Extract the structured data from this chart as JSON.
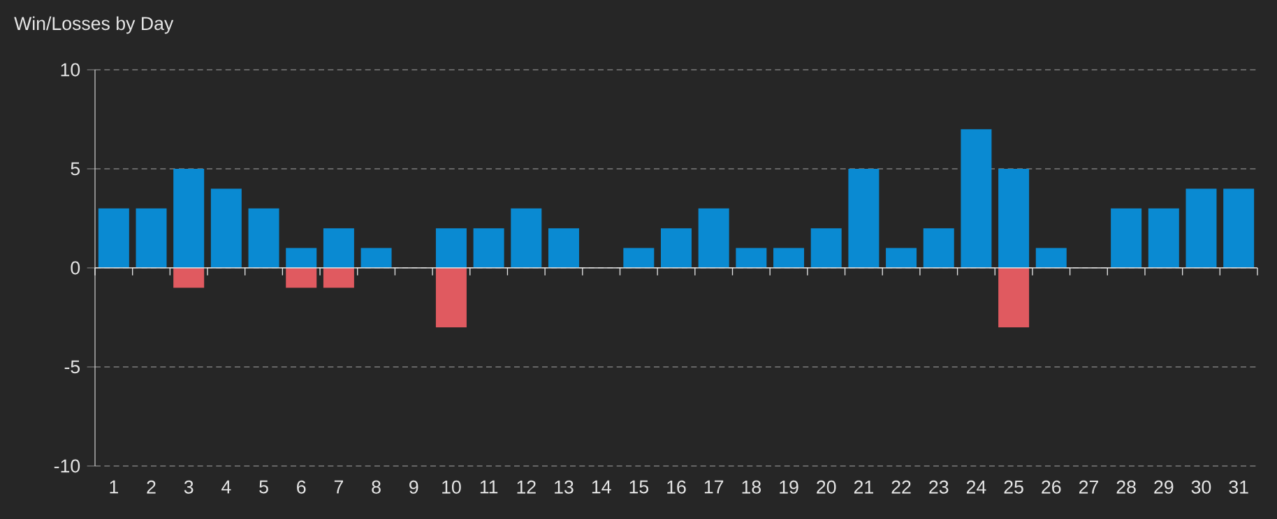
{
  "chart_data": {
    "type": "bar",
    "title": "Win/Losses by Day",
    "categories": [
      "1",
      "2",
      "3",
      "4",
      "5",
      "6",
      "7",
      "8",
      "9",
      "10",
      "11",
      "12",
      "13",
      "14",
      "15",
      "16",
      "17",
      "18",
      "19",
      "20",
      "21",
      "22",
      "23",
      "24",
      "25",
      "26",
      "27",
      "28",
      "29",
      "30",
      "31"
    ],
    "series": [
      {
        "color": "#0a8ad2",
        "values": [
          3,
          3,
          5,
          4,
          3,
          1,
          2,
          1,
          null,
          2,
          2,
          3,
          2,
          null,
          1,
          2,
          3,
          1,
          1,
          2,
          5,
          1,
          2,
          7,
          5,
          1,
          null,
          3,
          3,
          4,
          4
        ]
      },
      {
        "color": "#e05a60",
        "values": [
          null,
          null,
          -1,
          null,
          null,
          -1,
          -1,
          null,
          null,
          -3,
          null,
          null,
          null,
          null,
          null,
          null,
          null,
          null,
          null,
          null,
          null,
          null,
          null,
          null,
          -3,
          null,
          null,
          null,
          null,
          null,
          null
        ]
      }
    ],
    "stacked": true,
    "ylim": [
      -10,
      10
    ],
    "yticks": [
      -10,
      -5,
      0,
      5,
      10
    ],
    "grid": "y"
  }
}
